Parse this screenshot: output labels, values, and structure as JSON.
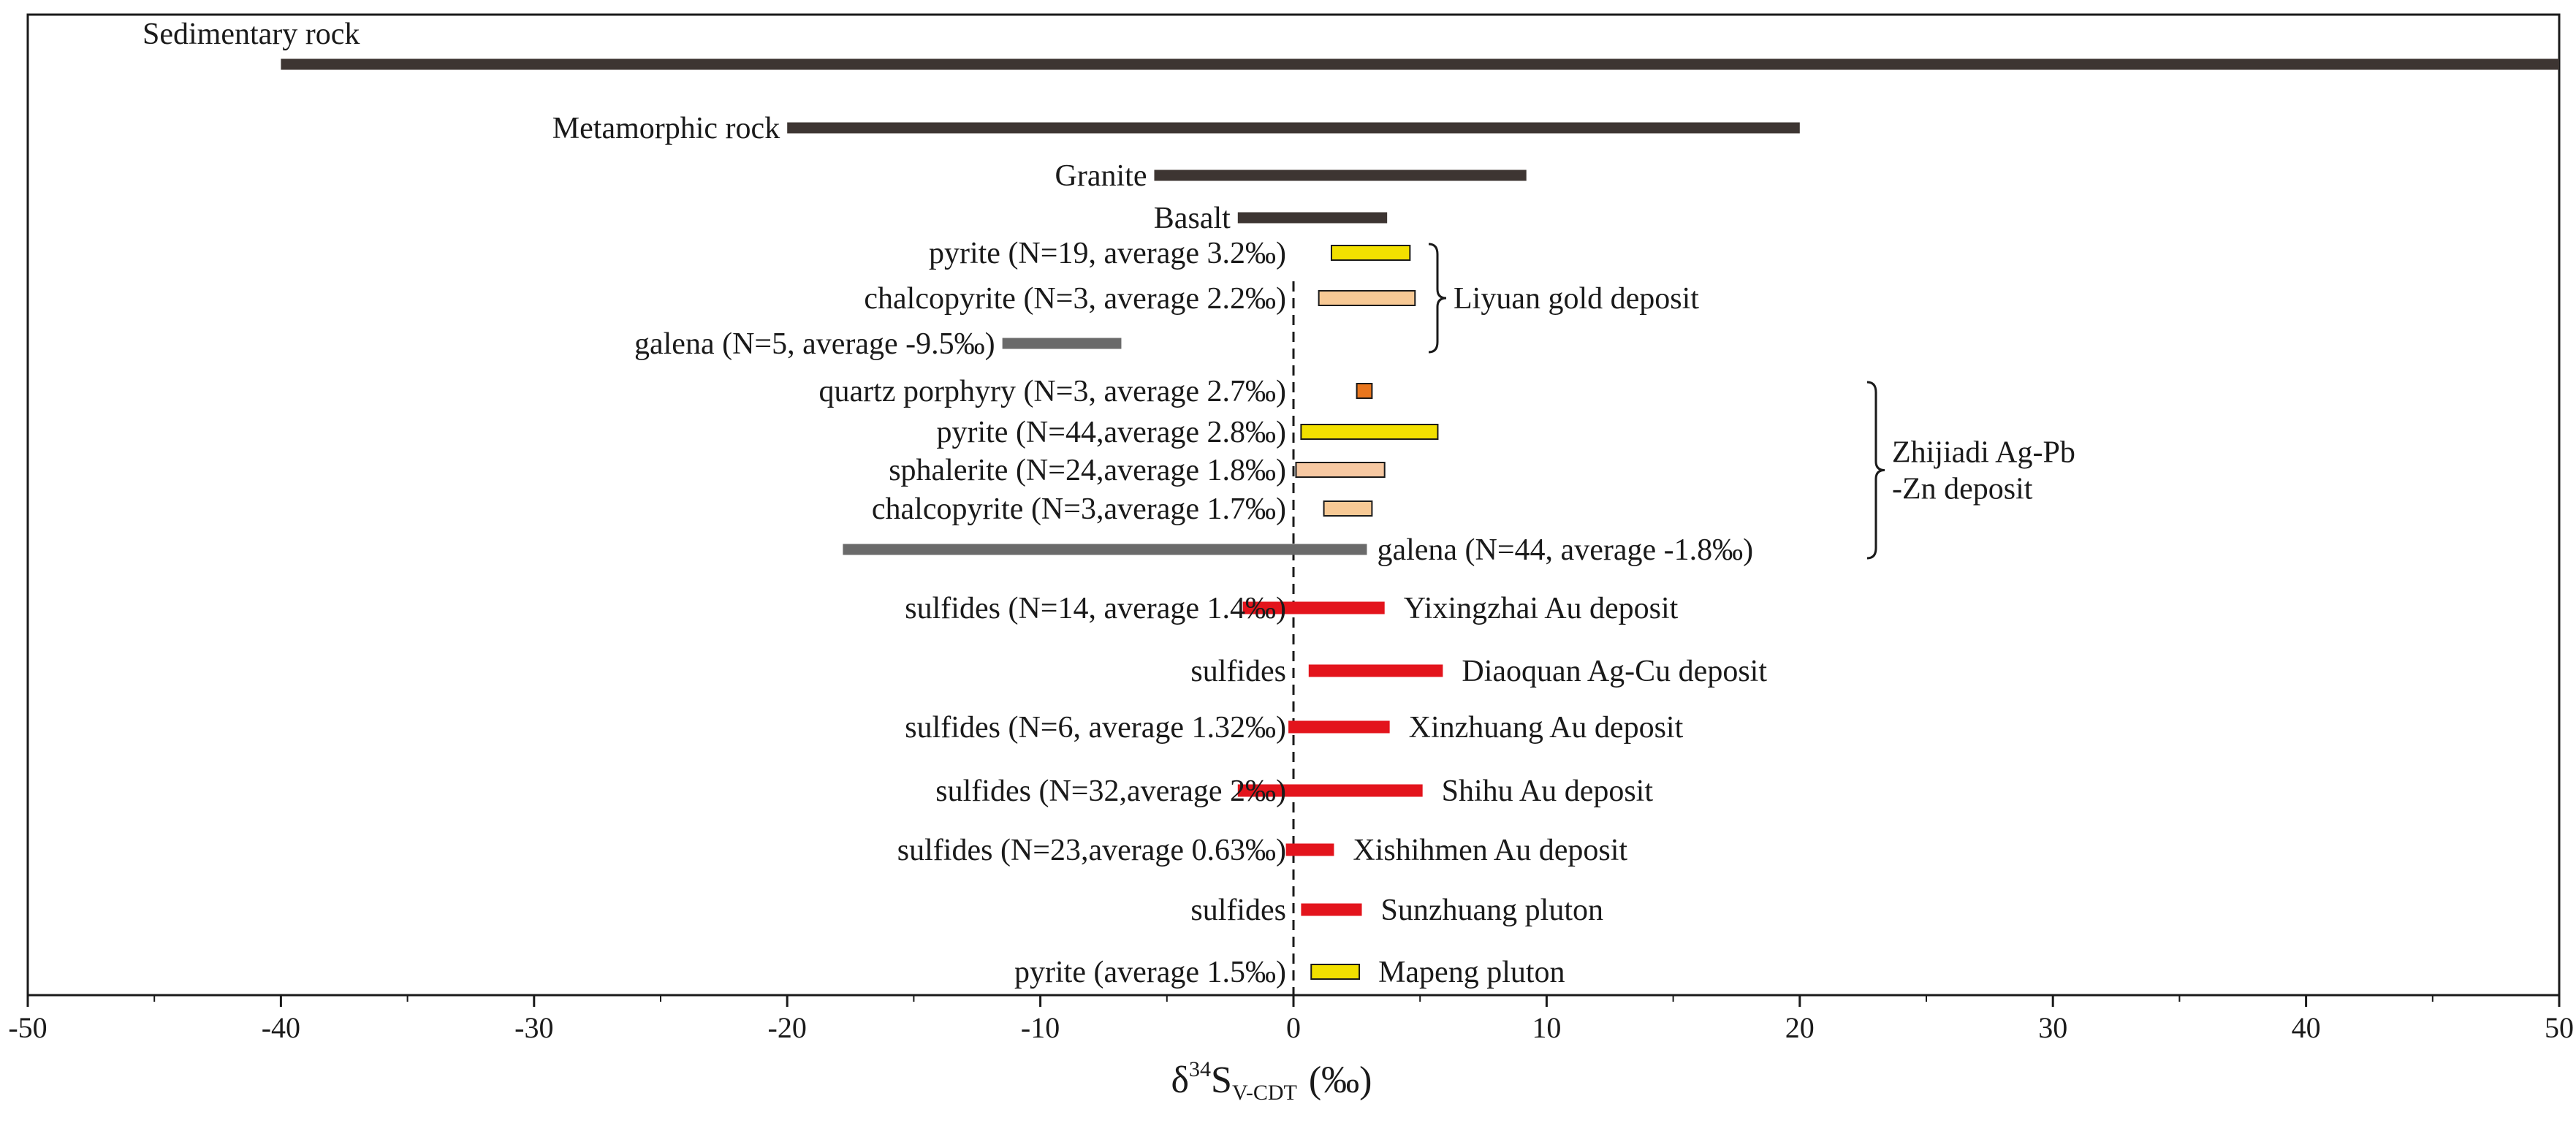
{
  "chart_data": {
    "type": "range-bar",
    "title": "",
    "xlabel": {
      "delta": "δ",
      "sup": "34",
      "main": "S",
      "sub": "V-CDT",
      "unit": "(‰)"
    },
    "xlim": [
      -50,
      50
    ],
    "xticks": [
      "-50",
      "-40",
      "-30",
      "-20",
      "-10",
      "0",
      "10",
      "20",
      "30",
      "40",
      "50"
    ],
    "reference_line": {
      "x": 0,
      "style": "dashed"
    },
    "colors": {
      "rock": "#3d3532",
      "galena": "#6a6a6a",
      "pyrite": "#f2e000",
      "chalcopyrite": "#f7c995",
      "sphalerite": "#f6c8a2",
      "quartz_porphyry": "#e8761e",
      "sulfides": "#e3141c"
    },
    "bars": [
      {
        "label": "Sedimentary rock",
        "min": -40,
        "max": 50,
        "kind": "rock",
        "label_side": "left"
      },
      {
        "label": "Metamorphic rock",
        "min": -20,
        "max": 20,
        "kind": "rock",
        "label_side": "left"
      },
      {
        "label": "Granite",
        "min": -5.5,
        "max": 9.2,
        "kind": "rock",
        "label_side": "left"
      },
      {
        "label": "Basalt",
        "min": -2.2,
        "max": 3.7,
        "kind": "rock",
        "label_side": "left"
      },
      {
        "label": "pyrite (N=19, average 3.2‰)",
        "min": 1.5,
        "max": 4.6,
        "kind": "pyrite",
        "label_side": "axis"
      },
      {
        "label": "chalcopyrite (N=3, average 2.2‰)",
        "min": 1.0,
        "max": 4.8,
        "kind": "chalcopyrite",
        "label_side": "axis"
      },
      {
        "label": "galena (N=5, average -9.5‰)",
        "min": -11.5,
        "max": -6.8,
        "kind": "galena",
        "label_side": "left"
      },
      {
        "label": "quartz porphyry (N=3, average 2.7‰)",
        "min": 2.5,
        "max": 3.1,
        "kind": "quartz_porphyry",
        "label_side": "axis"
      },
      {
        "label": "pyrite (N=44,average 2.8‰)",
        "min": 0.3,
        "max": 5.7,
        "kind": "pyrite",
        "label_side": "axis"
      },
      {
        "label": "sphalerite (N=24,average 1.8‰)",
        "min": 0.1,
        "max": 3.6,
        "kind": "sphalerite",
        "label_side": "axis"
      },
      {
        "label": "chalcopyrite (N=3,average 1.7‰)",
        "min": 1.2,
        "max": 3.1,
        "kind": "chalcopyrite",
        "label_side": "axis"
      },
      {
        "label": "galena (N=44, average -1.8‰)",
        "min": -17.8,
        "max": 2.9,
        "kind": "galena",
        "label_side": "right"
      },
      {
        "label": "sulfides (N=14, average 1.4‰)",
        "min": -2.0,
        "max": 3.6,
        "kind": "sulfides",
        "label_side": "axis",
        "deposit": "Yixingzhai Au deposit"
      },
      {
        "label": "sulfides",
        "min": 0.6,
        "max": 5.9,
        "kind": "sulfides",
        "label_side": "axis",
        "deposit": "Diaoquan Ag-Cu deposit"
      },
      {
        "label": "sulfides (N=6, average 1.32‰)",
        "min": -0.2,
        "max": 3.8,
        "kind": "sulfides",
        "label_side": "axis",
        "deposit": "Xinzhuang Au deposit"
      },
      {
        "label": "sulfides (N=32,average 2‰)",
        "min": -2.2,
        "max": 5.1,
        "kind": "sulfides",
        "label_side": "axis",
        "deposit": "Shihu Au deposit"
      },
      {
        "label": "sulfides (N=23,average 0.63‰)",
        "min": -0.3,
        "max": 1.6,
        "kind": "sulfides",
        "label_side": "axis",
        "deposit": "Xishihmen  Au deposit"
      },
      {
        "label": "sulfides",
        "min": 0.3,
        "max": 2.7,
        "kind": "sulfides",
        "label_side": "axis",
        "deposit": "Sunzhuang pluton"
      },
      {
        "label": "pyrite (average 1.5‰)",
        "min": 0.7,
        "max": 2.6,
        "kind": "pyrite",
        "label_side": "axis",
        "deposit": "Mapeng pluton"
      }
    ],
    "groups": [
      {
        "lines": [
          "Liyuan gold deposit"
        ],
        "from_bar": 4,
        "to_bar": 6
      },
      {
        "lines": [
          "Zhijiadi Ag-Pb",
          "-Zn deposit"
        ],
        "from_bar": 7,
        "to_bar": 11
      }
    ]
  }
}
